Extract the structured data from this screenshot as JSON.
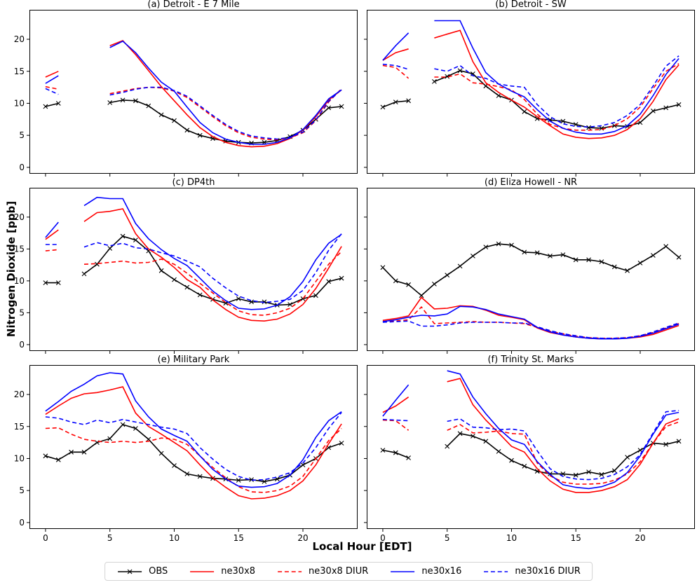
{
  "figure": {
    "ylabel": "Nitrogen Dioxide [ppb]",
    "xlabel": "Local Hour [EDT]"
  },
  "chart_data": {
    "type": "line",
    "x": [
      0,
      1,
      2,
      3,
      4,
      5,
      6,
      7,
      8,
      9,
      10,
      11,
      12,
      13,
      14,
      15,
      16,
      17,
      18,
      19,
      20,
      21,
      22,
      23
    ],
    "xlabel": "Local Hour [EDT]",
    "ylabel": "Nitrogen Dioxide [ppb]",
    "xticks": [
      0,
      5,
      10,
      15,
      20
    ],
    "yticks": [
      0,
      5,
      10,
      15,
      20
    ],
    "xlim": [
      -1.25,
      24.25
    ],
    "ylim": [
      -1.0,
      24.6
    ],
    "grid": false,
    "legend_position": "bottom-center",
    "series_defs": [
      {
        "name": "OBS",
        "color": "#000000",
        "style": "solid",
        "marker": "x"
      },
      {
        "name": "ne30x8",
        "color": "#ff0000",
        "style": "solid",
        "marker": null
      },
      {
        "name": "ne30x8 DIUR",
        "color": "#ff0000",
        "style": "dashed",
        "marker": null
      },
      {
        "name": "ne30x16",
        "color": "#0000ff",
        "style": "solid",
        "marker": null
      },
      {
        "name": "ne30x16 DIUR",
        "color": "#0000ff",
        "style": "dashed",
        "marker": null
      }
    ],
    "subplots": [
      {
        "title": "(a) Detroit - E 7 Mile",
        "values": {
          "OBS": [
            9.5,
            10.0,
            null,
            null,
            null,
            10.1,
            10.5,
            10.4,
            9.6,
            8.2,
            7.3,
            5.8,
            5.0,
            4.5,
            4.1,
            3.9,
            3.8,
            3.9,
            4.2,
            4.8,
            5.8,
            7.5,
            9.3,
            9.5
          ],
          "ne30x8": [
            14.1,
            15.0,
            null,
            null,
            null,
            19.0,
            19.8,
            17.6,
            15.1,
            12.6,
            10.4,
            8.2,
            6.2,
            4.8,
            3.9,
            3.4,
            3.2,
            3.3,
            3.7,
            4.5,
            5.8,
            7.9,
            10.5,
            12.1
          ],
          "ne30x8 DIUR": [
            12.6,
            12.2,
            null,
            null,
            null,
            11.5,
            11.9,
            12.3,
            12.5,
            12.4,
            11.9,
            10.9,
            9.4,
            7.9,
            6.5,
            5.4,
            4.7,
            4.4,
            4.3,
            4.6,
            5.4,
            7.3,
            10.2,
            12.3
          ],
          "ne30x16": [
            13.1,
            14.3,
            null,
            null,
            null,
            18.7,
            19.7,
            17.9,
            15.5,
            13.3,
            11.9,
            9.4,
            7.0,
            5.4,
            4.4,
            3.9,
            3.6,
            3.6,
            3.9,
            4.6,
            5.9,
            8.1,
            10.7,
            12.1
          ],
          "ne30x16 DIUR": [
            12.3,
            11.4,
            null,
            null,
            null,
            11.3,
            11.7,
            12.2,
            12.5,
            12.5,
            12.0,
            11.1,
            9.6,
            8.1,
            6.7,
            5.6,
            4.9,
            4.6,
            4.4,
            4.7,
            5.5,
            7.4,
            10.3,
            12.2
          ]
        }
      },
      {
        "title": "(b) Detroit - SW",
        "values": {
          "OBS": [
            9.4,
            10.2,
            10.4,
            null,
            13.4,
            14.2,
            15.1,
            14.6,
            12.7,
            11.2,
            10.5,
            8.7,
            7.6,
            7.4,
            7.2,
            6.7,
            6.2,
            6.1,
            6.5,
            6.4,
            7.0,
            8.8,
            9.3,
            9.8
          ],
          "ne30x8": [
            16.7,
            17.9,
            18.5,
            null,
            20.2,
            20.8,
            21.4,
            16.5,
            13.2,
            11.7,
            10.5,
            9.4,
            7.9,
            6.5,
            5.2,
            4.7,
            4.5,
            4.6,
            5.0,
            5.9,
            7.6,
            10.3,
            13.7,
            16.0
          ],
          "ne30x8 DIUR": [
            15.9,
            15.6,
            13.9,
            null,
            14.1,
            14.1,
            14.6,
            13.2,
            13.0,
            12.6,
            12.1,
            10.6,
            8.3,
            6.7,
            6.1,
            5.8,
            5.8,
            5.9,
            6.5,
            7.6,
            9.4,
            12.3,
            15.0,
            16.2
          ],
          "ne30x16": [
            16.7,
            19.0,
            21.0,
            null,
            22.9,
            22.9,
            22.9,
            18.6,
            14.8,
            13.0,
            11.9,
            11.0,
            9.0,
            7.2,
            6.1,
            5.5,
            5.2,
            5.2,
            5.6,
            6.5,
            8.3,
            11.2,
            14.5,
            17.0
          ],
          "ne30x16 DIUR": [
            16.1,
            15.9,
            15.3,
            null,
            15.4,
            15.0,
            15.9,
            14.3,
            13.9,
            13.0,
            12.7,
            12.5,
            9.8,
            7.9,
            6.8,
            6.4,
            6.3,
            6.5,
            7.0,
            8.1,
            9.8,
            12.7,
            15.8,
            17.4
          ]
        }
      },
      {
        "title": "(c) DP4th",
        "values": {
          "OBS": [
            9.7,
            9.7,
            null,
            11.1,
            12.6,
            15.1,
            17.0,
            16.4,
            14.7,
            11.6,
            10.2,
            9.0,
            7.8,
            7.1,
            6.5,
            7.2,
            6.7,
            6.7,
            6.2,
            6.3,
            7.2,
            7.7,
            9.9,
            10.4
          ],
          "ne30x8": [
            16.5,
            18.0,
            null,
            19.3,
            20.7,
            20.9,
            21.3,
            17.4,
            15.0,
            13.7,
            12.1,
            10.2,
            9.0,
            7.0,
            5.5,
            4.3,
            3.8,
            3.7,
            4.0,
            4.8,
            6.3,
            8.8,
            12.0,
            15.4
          ],
          "ne30x8 DIUR": [
            14.7,
            14.9,
            null,
            12.6,
            12.7,
            12.9,
            13.1,
            12.8,
            12.9,
            13.4,
            12.6,
            11.2,
            9.6,
            8.1,
            6.6,
            5.3,
            4.7,
            4.6,
            5.0,
            5.7,
            7.2,
            9.9,
            12.6,
            14.6
          ],
          "ne30x16": [
            16.8,
            19.2,
            null,
            21.8,
            23.1,
            22.9,
            22.9,
            19.0,
            16.6,
            14.9,
            13.5,
            12.4,
            10.4,
            8.4,
            6.9,
            5.7,
            5.5,
            5.6,
            6.2,
            7.5,
            9.9,
            13.3,
            15.9,
            17.3
          ],
          "ne30x16 DIUR": [
            15.7,
            15.7,
            null,
            15.3,
            16.0,
            15.5,
            15.9,
            15.2,
            15.0,
            14.4,
            13.9,
            13.1,
            12.2,
            10.4,
            8.9,
            7.6,
            6.9,
            6.6,
            6.8,
            7.1,
            8.5,
            11.3,
            14.8,
            17.4
          ]
        }
      },
      {
        "title": "(d) Eliza Howell - NR",
        "values": {
          "OBS": [
            12.1,
            10.0,
            9.4,
            7.7,
            9.5,
            10.9,
            12.3,
            13.9,
            15.3,
            15.8,
            15.6,
            14.5,
            14.4,
            13.9,
            14.1,
            13.3,
            13.3,
            13.0,
            12.2,
            11.6,
            12.8,
            14.0,
            15.4,
            13.7
          ],
          "ne30x8": [
            3.8,
            4.1,
            4.5,
            7.4,
            5.6,
            5.7,
            6.1,
            6.0,
            5.4,
            4.6,
            4.3,
            3.9,
            2.6,
            1.9,
            1.5,
            1.2,
            1.0,
            0.9,
            0.9,
            1.0,
            1.2,
            1.6,
            2.3,
            3.0
          ],
          "ne30x8 DIUR": [
            3.6,
            3.7,
            3.9,
            5.9,
            3.3,
            3.4,
            3.5,
            3.6,
            3.5,
            3.5,
            3.4,
            3.3,
            2.7,
            2.1,
            1.7,
            1.3,
            1.1,
            1.0,
            1.0,
            1.1,
            1.4,
            1.9,
            2.6,
            3.3
          ],
          "ne30x16": [
            3.6,
            3.9,
            4.3,
            4.6,
            4.5,
            4.8,
            6.0,
            5.9,
            5.5,
            4.8,
            4.4,
            4.0,
            2.7,
            2.0,
            1.5,
            1.2,
            1.0,
            0.9,
            0.9,
            1.0,
            1.3,
            1.8,
            2.5,
            3.2
          ],
          "ne30x16 DIUR": [
            3.5,
            3.6,
            3.7,
            2.9,
            2.9,
            3.1,
            3.4,
            3.5,
            3.5,
            3.5,
            3.4,
            3.4,
            2.8,
            2.2,
            1.7,
            1.4,
            1.1,
            1.0,
            1.0,
            1.1,
            1.4,
            2.0,
            2.7,
            3.4
          ]
        }
      },
      {
        "title": "(e) Military Park",
        "values": {
          "OBS": [
            10.4,
            9.8,
            11.0,
            11.0,
            12.5,
            13.1,
            15.3,
            14.7,
            13.0,
            10.8,
            8.9,
            7.6,
            7.2,
            6.9,
            6.8,
            6.6,
            6.7,
            6.4,
            6.8,
            7.4,
            9.0,
            10.0,
            11.7,
            12.4
          ],
          "ne30x8": [
            16.9,
            18.2,
            19.4,
            20.1,
            20.3,
            20.7,
            21.2,
            17.1,
            15.0,
            13.8,
            12.5,
            11.2,
            9.0,
            7.0,
            5.5,
            4.2,
            3.7,
            3.8,
            4.2,
            5.0,
            6.5,
            9.0,
            12.3,
            15.4
          ],
          "ne30x8 DIUR": [
            14.7,
            14.8,
            13.8,
            13.0,
            12.7,
            12.5,
            12.7,
            12.5,
            12.7,
            13.2,
            13.0,
            12.2,
            10.4,
            8.6,
            7.0,
            5.6,
            4.8,
            4.7,
            5.0,
            5.7,
            7.2,
            10.0,
            12.8,
            14.7
          ],
          "ne30x16": [
            17.4,
            18.9,
            20.5,
            21.6,
            22.9,
            23.4,
            23.2,
            19.0,
            16.5,
            14.6,
            13.6,
            12.7,
            10.4,
            8.3,
            6.8,
            5.7,
            5.5,
            5.6,
            6.1,
            7.4,
            9.8,
            13.3,
            15.9,
            17.3
          ],
          "ne30x16 DIUR": [
            16.5,
            16.3,
            15.7,
            15.3,
            16.0,
            15.6,
            16.1,
            15.7,
            15.3,
            14.9,
            14.6,
            13.9,
            11.7,
            9.9,
            8.3,
            7.2,
            6.6,
            6.7,
            7.1,
            7.8,
            9.3,
            11.7,
            14.7,
            17.2
          ]
        }
      },
      {
        "title": "(f) Trinity St. Marks",
        "values": {
          "OBS": [
            11.3,
            10.9,
            10.1,
            null,
            null,
            11.9,
            13.9,
            13.5,
            12.7,
            11.1,
            9.7,
            8.8,
            8.0,
            7.6,
            7.6,
            7.4,
            7.9,
            7.5,
            8.1,
            10.2,
            11.3,
            12.4,
            12.2,
            12.7
          ],
          "ne30x8": [
            17.2,
            18.2,
            19.6,
            null,
            null,
            22.0,
            22.5,
            18.4,
            16.0,
            14.0,
            11.9,
            11.0,
            8.4,
            6.5,
            5.2,
            4.7,
            4.7,
            5.0,
            5.6,
            6.7,
            9.1,
            12.4,
            15.4,
            16.2
          ],
          "ne30x8 DIUR": [
            16.0,
            15.9,
            14.4,
            null,
            null,
            14.4,
            15.3,
            14.0,
            14.1,
            14.3,
            13.9,
            13.8,
            9.3,
            7.3,
            6.3,
            6.0,
            6.0,
            6.1,
            6.6,
            7.6,
            9.5,
            12.4,
            15.0,
            15.7
          ],
          "ne30x16": [
            16.6,
            19.1,
            21.5,
            null,
            null,
            23.7,
            23.2,
            19.6,
            17.0,
            14.7,
            12.9,
            12.2,
            9.5,
            7.5,
            5.9,
            5.5,
            5.3,
            5.6,
            6.3,
            7.8,
            10.4,
            13.8,
            16.8,
            17.2
          ],
          "ne30x16 DIUR": [
            16.1,
            16.0,
            15.9,
            null,
            null,
            15.8,
            16.2,
            14.9,
            14.8,
            14.5,
            14.6,
            14.3,
            11.2,
            8.4,
            7.2,
            6.8,
            6.7,
            6.9,
            7.5,
            8.7,
            10.6,
            14.0,
            17.3,
            17.5
          ]
        }
      }
    ]
  }
}
